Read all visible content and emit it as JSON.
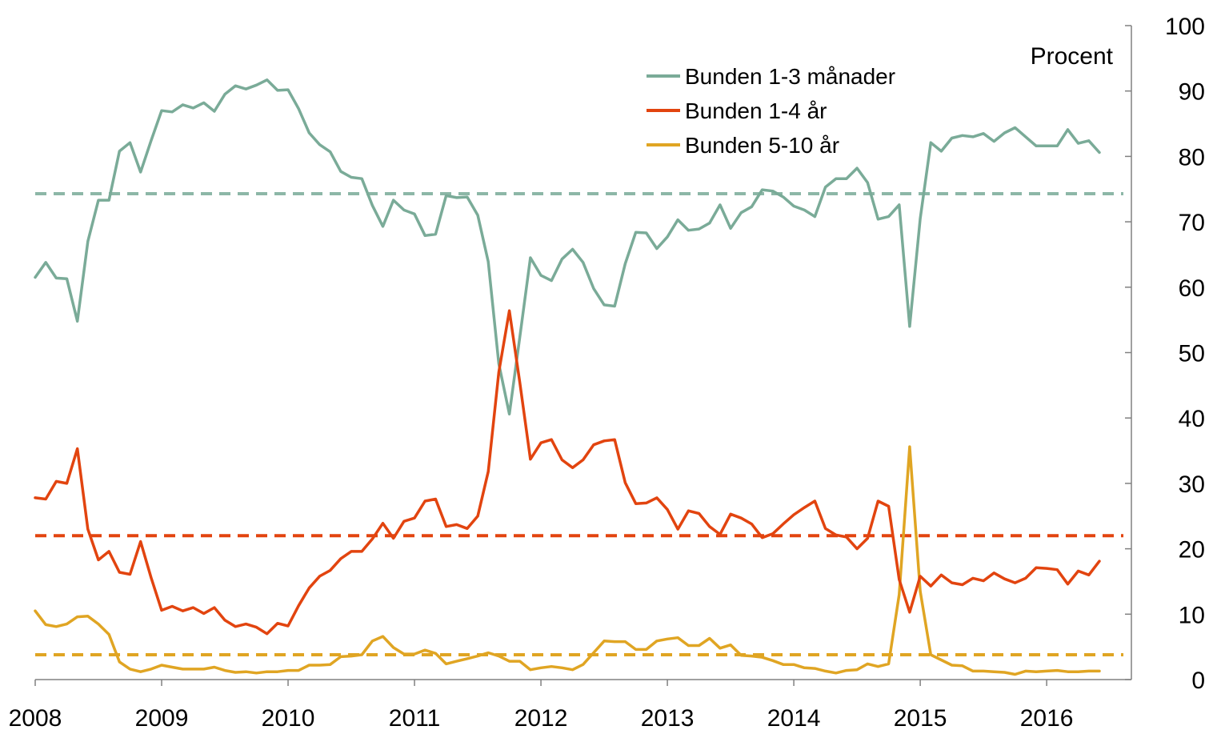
{
  "chart_data": {
    "type": "line",
    "ylabel": "Procent",
    "ylim": [
      0,
      100
    ],
    "yticks": [
      0,
      10,
      20,
      30,
      40,
      50,
      60,
      70,
      80,
      90,
      100
    ],
    "xlim": [
      2008,
      2016.67
    ],
    "xticks": [
      "2008",
      "2009",
      "2010",
      "2011",
      "2012",
      "2013",
      "2014",
      "2015",
      "2016"
    ],
    "legend_position": "top-center",
    "grid": false,
    "series": [
      {
        "name": "Bunden 1-3 månader",
        "color": "#7aab98",
        "average": 74.3,
        "values": [
          61.5,
          63.8,
          61.4,
          61.3,
          54.8,
          67.0,
          73.3,
          73.3,
          80.8,
          82.1,
          77.6,
          82.4,
          87.0,
          86.8,
          87.9,
          87.4,
          88.2,
          86.9,
          89.5,
          90.8,
          90.3,
          90.9,
          91.7,
          90.1,
          90.2,
          87.3,
          83.6,
          81.8,
          80.7,
          77.7,
          76.8,
          76.6,
          72.5,
          69.3,
          73.3,
          71.8,
          71.2,
          67.9,
          68.1,
          74.0,
          73.7,
          73.8,
          71.0,
          63.9,
          48.3,
          40.6,
          52.4,
          64.5,
          61.8,
          61.0,
          64.3,
          65.8,
          63.8,
          59.8,
          57.3,
          57.1,
          63.6,
          68.4,
          68.3,
          65.9,
          67.7,
          70.3,
          68.7,
          68.9,
          69.8,
          72.6,
          69.0,
          71.4,
          72.3,
          74.9,
          74.7,
          73.8,
          72.4,
          71.8,
          70.8,
          75.3,
          76.6,
          76.6,
          78.2,
          76.0,
          70.4,
          70.8,
          72.6,
          54.0,
          70.5,
          82.1,
          80.8,
          82.8,
          83.2,
          83.0,
          83.5,
          82.3,
          83.6,
          84.4,
          83.0,
          81.6,
          81.6,
          81.6,
          84.1,
          82.0,
          82.4,
          80.6
        ]
      },
      {
        "name": "Bunden 1-4 år",
        "color": "#e2440f",
        "average": 22.0,
        "values": [
          27.8,
          27.6,
          30.3,
          30.0,
          35.3,
          23.0,
          18.3,
          19.6,
          16.4,
          16.1,
          21.1,
          15.6,
          10.6,
          11.2,
          10.5,
          11.0,
          10.1,
          11.0,
          9.1,
          8.1,
          8.5,
          8.0,
          7.0,
          8.6,
          8.2,
          11.3,
          14.0,
          15.8,
          16.7,
          18.5,
          19.6,
          19.6,
          21.5,
          23.9,
          21.6,
          24.2,
          24.7,
          27.3,
          27.6,
          23.4,
          23.7,
          23.1,
          25.0,
          31.8,
          47.0,
          56.4,
          45.4,
          33.7,
          36.2,
          36.7,
          33.6,
          32.4,
          33.6,
          35.9,
          36.5,
          36.7,
          30.1,
          26.9,
          27.0,
          27.8,
          26.0,
          23.0,
          25.8,
          25.4,
          23.4,
          22.2,
          25.3,
          24.7,
          23.8,
          21.7,
          22.3,
          23.8,
          25.2,
          26.3,
          27.3,
          23.1,
          22.1,
          21.8,
          20.0,
          21.6,
          27.3,
          26.5,
          15.3,
          10.3,
          15.8,
          14.3,
          16.0,
          14.8,
          14.5,
          15.5,
          15.1,
          16.3,
          15.4,
          14.8,
          15.5,
          17.1,
          17.0,
          16.8,
          14.6,
          16.6,
          16.0,
          18.1
        ]
      },
      {
        "name": "Bunden 5-10 år",
        "color": "#e0a523",
        "average": 3.8,
        "values": [
          10.5,
          8.4,
          8.1,
          8.5,
          9.6,
          9.7,
          8.5,
          6.9,
          2.7,
          1.6,
          1.2,
          1.6,
          2.2,
          1.9,
          1.6,
          1.6,
          1.6,
          1.9,
          1.4,
          1.1,
          1.2,
          1.0,
          1.2,
          1.2,
          1.4,
          1.4,
          2.2,
          2.2,
          2.3,
          3.5,
          3.6,
          3.8,
          5.9,
          6.6,
          4.9,
          3.9,
          3.9,
          4.5,
          4.0,
          2.4,
          2.8,
          3.2,
          3.6,
          4.1,
          3.6,
          2.8,
          2.8,
          1.5,
          1.8,
          2.0,
          1.8,
          1.5,
          2.3,
          4.1,
          5.9,
          5.8,
          5.8,
          4.6,
          4.6,
          5.9,
          6.2,
          6.4,
          5.2,
          5.2,
          6.3,
          4.8,
          5.3,
          3.7,
          3.6,
          3.4,
          2.9,
          2.3,
          2.3,
          1.8,
          1.7,
          1.3,
          1.0,
          1.4,
          1.5,
          2.4,
          2.0,
          2.4,
          13.0,
          35.6,
          13.5,
          3.8,
          3.0,
          2.2,
          2.1,
          1.3,
          1.3,
          1.2,
          1.1,
          0.8,
          1.3,
          1.2,
          1.3,
          1.4,
          1.2,
          1.2,
          1.3,
          1.3
        ]
      }
    ]
  }
}
